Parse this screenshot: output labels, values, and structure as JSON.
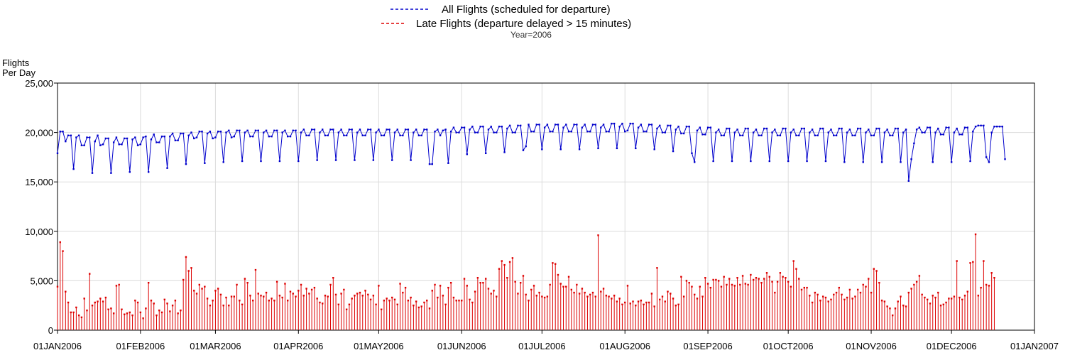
{
  "chart_data": {
    "type": "line",
    "legend": {
      "all_label": "All Flights (scheduled for departure)",
      "late_label": "Late Flights (departure delayed > 15 minutes)",
      "all_color": "#0000cc",
      "late_color": "#dd0000"
    },
    "subtitle": "Year=2006",
    "ylabel_line1": "Flights",
    "ylabel_line2": "Per Day",
    "xlabel": "",
    "ylim": [
      0,
      25000
    ],
    "xlim": [
      "2006-01-01",
      "2007-01-01"
    ],
    "grid": true,
    "y_ticks": [
      "0",
      "5,000",
      "10,000",
      "15,000",
      "20,000",
      "25,000"
    ],
    "x_ticks": [
      "01JAN2006",
      "01FEB2006",
      "01MAR2006",
      "01APR2006",
      "01MAY2006",
      "01JUN2006",
      "01JUL2006",
      "01AUG2006",
      "01SEP2006",
      "01OCT2006",
      "01NOV2006",
      "01DEC2006",
      "01JAN2007"
    ],
    "x_tick_dates": [
      "2006-01-01",
      "2006-02-01",
      "2006-03-01",
      "2006-04-01",
      "2006-05-01",
      "2006-06-01",
      "2006-07-01",
      "2006-08-01",
      "2006-09-01",
      "2006-10-01",
      "2006-11-01",
      "2006-12-01",
      "2007-01-01"
    ],
    "series": [
      {
        "name": "All Flights (scheduled for departure)",
        "style": "line-markers",
        "start": "2006-01-01",
        "values": [
          17900,
          20100,
          20100,
          19100,
          19700,
          19700,
          16300,
          19500,
          19700,
          18700,
          18700,
          19500,
          19500,
          15900,
          19100,
          19700,
          18700,
          18800,
          19400,
          19400,
          15900,
          19000,
          19500,
          18800,
          18800,
          19400,
          19400,
          16000,
          19300,
          19500,
          18700,
          18800,
          19500,
          19600,
          16000,
          19300,
          19800,
          19000,
          19000,
          19600,
          19600,
          16400,
          19600,
          19900,
          19200,
          19200,
          19900,
          19900,
          16800,
          19700,
          20000,
          19400,
          19500,
          20100,
          20100,
          16900,
          19900,
          20100,
          19400,
          19500,
          20100,
          20100,
          17000,
          20000,
          20200,
          19500,
          19600,
          20200,
          20200,
          17100,
          20000,
          20200,
          19600,
          19600,
          20200,
          20200,
          17100,
          20000,
          20200,
          19600,
          19600,
          20200,
          20200,
          17100,
          20000,
          20200,
          19600,
          19600,
          20200,
          20200,
          17100,
          20000,
          20300,
          19700,
          19700,
          20300,
          20300,
          17200,
          20000,
          20300,
          19700,
          19700,
          20300,
          20300,
          17200,
          20000,
          20300,
          19700,
          19700,
          20300,
          20300,
          17200,
          20000,
          20300,
          19700,
          19700,
          20300,
          20300,
          17200,
          20000,
          20300,
          19700,
          19700,
          20300,
          20300,
          17200,
          20000,
          20300,
          19700,
          19700,
          20300,
          20300,
          17200,
          20000,
          20300,
          19700,
          19700,
          20300,
          20300,
          16800,
          16800,
          20100,
          20300,
          19700,
          20200,
          20300,
          16900,
          20100,
          20500,
          20000,
          20000,
          20500,
          20500,
          17800,
          20300,
          20600,
          20000,
          20000,
          20600,
          20600,
          17900,
          20300,
          20600,
          20000,
          20000,
          20600,
          20600,
          18000,
          20400,
          20700,
          20000,
          20000,
          20700,
          20700,
          18200,
          18600,
          20800,
          20100,
          20100,
          20800,
          20800,
          18300,
          20500,
          20800,
          20100,
          20100,
          20800,
          20800,
          18300,
          20500,
          20800,
          20100,
          20100,
          20800,
          20800,
          18300,
          20500,
          20800,
          20100,
          20100,
          20800,
          20800,
          18400,
          20500,
          20800,
          20100,
          20100,
          20900,
          20900,
          18400,
          20600,
          20900,
          20100,
          20200,
          20900,
          20900,
          18400,
          20500,
          20800,
          20100,
          20100,
          20800,
          20800,
          18300,
          20400,
          20700,
          20000,
          20000,
          20700,
          20700,
          18100,
          20300,
          20600,
          19900,
          19900,
          20600,
          20600,
          17900,
          17000,
          20200,
          20500,
          19800,
          19800,
          20500,
          20500,
          17100,
          20000,
          20300,
          19700,
          19700,
          20400,
          20400,
          17100,
          20000,
          20300,
          19700,
          19700,
          20400,
          20400,
          17100,
          20000,
          20300,
          19700,
          19700,
          20400,
          20400,
          17100,
          20000,
          20300,
          19700,
          19700,
          20400,
          20400,
          17100,
          20000,
          20300,
          19700,
          19700,
          20400,
          20400,
          17100,
          20000,
          20300,
          19700,
          19700,
          20400,
          20400,
          17100,
          20000,
          20300,
          19700,
          19700,
          20400,
          20400,
          17000,
          20000,
          20300,
          19700,
          19700,
          20400,
          20400,
          17000,
          20000,
          20300,
          19700,
          19700,
          20400,
          20400,
          17000,
          20000,
          20300,
          19700,
          19700,
          20400,
          20400,
          17000,
          20000,
          20300,
          15100,
          17300,
          18900,
          20300,
          20500,
          20000,
          20000,
          20500,
          20500,
          17000,
          20000,
          20400,
          19800,
          19800,
          20500,
          20500,
          17000,
          20000,
          20400,
          19800,
          19800,
          20500,
          20500,
          17100,
          20100,
          20600,
          20700,
          20700,
          20700,
          17500,
          17000,
          20000,
          20600,
          20600,
          20600,
          20600,
          17300
        ]
      },
      {
        "name": "Late Flights (departure delayed > 15 minutes)",
        "style": "needle",
        "start": "2006-01-01",
        "values": [
          4400,
          8900,
          8000,
          3900,
          2800,
          1800,
          1800,
          2300,
          1500,
          1300,
          3200,
          2000,
          5700,
          2500,
          2800,
          2900,
          3200,
          2900,
          3300,
          2100,
          2200,
          1700,
          4500,
          4600,
          2100,
          1600,
          1700,
          1800,
          1500,
          3000,
          2800,
          1800,
          1200,
          2200,
          4800,
          3000,
          2700,
          1500,
          2000,
          1800,
          3100,
          2700,
          1900,
          2500,
          3000,
          1700,
          2000,
          5100,
          7400,
          6000,
          6300,
          4000,
          3700,
          4600,
          4200,
          4400,
          3200,
          2500,
          3000,
          4000,
          4200,
          3600,
          2500,
          3300,
          2500,
          3400,
          3400,
          4600,
          3000,
          2600,
          5200,
          4800,
          3500,
          3000,
          6100,
          3700,
          3500,
          3400,
          3800,
          3000,
          3200,
          3000,
          4900,
          3500,
          3300,
          4700,
          3000,
          3900,
          3700,
          3400,
          4000,
          4600,
          3500,
          4200,
          3700,
          4100,
          4300,
          3200,
          2800,
          2700,
          3500,
          3400,
          4600,
          5300,
          3600,
          2600,
          3700,
          4100,
          2100,
          2600,
          3200,
          3500,
          3700,
          3800,
          3500,
          4000,
          3600,
          3100,
          3500,
          2600,
          4500,
          2100,
          3000,
          3200,
          3000,
          3300,
          3100,
          2600,
          4700,
          3800,
          4300,
          3000,
          3300,
          2500,
          2900,
          2300,
          2400,
          2800,
          3000,
          2200,
          4000,
          4600,
          3300,
          4500,
          3500,
          2600,
          4300,
          4800,
          3300,
          3000,
          3000,
          3000,
          5200,
          4500,
          3100,
          2800,
          3900,
          5300,
          4800,
          4800,
          5200,
          4200,
          3700,
          4000,
          3400,
          6200,
          7000,
          6600,
          5300,
          6900,
          7300,
          4900,
          3700,
          4800,
          5500,
          3600,
          3000,
          4100,
          4500,
          3500,
          3800,
          3400,
          3300,
          3400,
          4600,
          6800,
          6700,
          5600,
          4700,
          4400,
          4400,
          5400,
          4100,
          3800,
          4600,
          3700,
          4200,
          3800,
          3400,
          3600,
          3800,
          3400,
          9600,
          3900,
          4200,
          3500,
          3400,
          3200,
          3500,
          2900,
          3200,
          2600,
          2800,
          4500,
          2700,
          2900,
          2500,
          2900,
          3000,
          2600,
          2800,
          2800,
          3700,
          2400,
          6300,
          3100,
          3400,
          2900,
          3900,
          3700,
          3200,
          2500,
          2600,
          5400,
          3400,
          5000,
          4800,
          4400,
          3600,
          3200,
          4400,
          3400,
          5300,
          4700,
          4300,
          5100,
          5100,
          5000,
          4400,
          5400,
          4600,
          5200,
          4600,
          4500,
          5300,
          4600,
          5500,
          4700,
          4600,
          5600,
          5100,
          5300,
          5200,
          4800,
          5200,
          5800,
          5400,
          4900,
          3800,
          4900,
          5800,
          5400,
          5300,
          4900,
          4400,
          7000,
          6200,
          5200,
          4100,
          4300,
          4300,
          3500,
          2800,
          3800,
          3600,
          3000,
          3400,
          3300,
          2900,
          3100,
          3600,
          3800,
          4300,
          3600,
          3100,
          3300,
          4100,
          3200,
          3400,
          4100,
          3800,
          4600,
          4400,
          5200,
          3800,
          6200,
          6000,
          4800,
          3000,
          2900,
          2400,
          2200,
          1500,
          2200,
          2900,
          3400,
          2500,
          2400,
          3800,
          4200,
          4600,
          4900,
          5500,
          3600,
          3300,
          3100,
          2700,
          3500,
          3300,
          3800,
          2500,
          2600,
          2800,
          3200,
          3200,
          3400,
          7000,
          3300,
          3100,
          3500,
          3900,
          6800,
          6900,
          9700,
          3500,
          4300,
          7000,
          4600,
          4500,
          5800,
          5300
        ]
      }
    ]
  }
}
